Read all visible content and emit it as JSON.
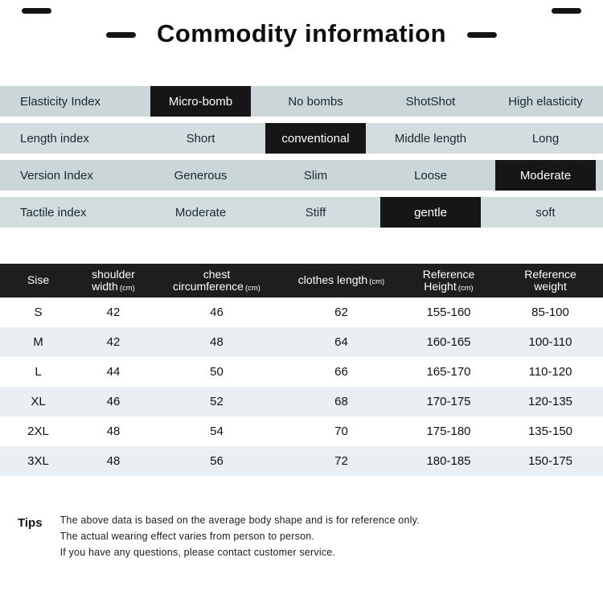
{
  "title": "Commodity information",
  "colors": {
    "selected_bg": "#161616",
    "attr_row_bg": "#cbd6d8",
    "table_header_bg": "#1e1e1e",
    "stripe_bg": "#e9eff2"
  },
  "attributes": {
    "rows": [
      {
        "label": "Elasticity Index",
        "options": [
          "Micro-bomb",
          "No bombs",
          "ShotShot",
          "High elasticity"
        ],
        "selected": "Micro-bomb"
      },
      {
        "label": "Length index",
        "options": [
          "Short",
          "conventional",
          "Middle length",
          "Long"
        ],
        "selected": "conventional"
      },
      {
        "label": "Version Index",
        "options": [
          "Generous",
          "Slim",
          "Loose",
          "Moderate"
        ],
        "selected": "Moderate"
      },
      {
        "label": "Tactile index",
        "options": [
          "Moderate",
          "Stiff",
          "gentle",
          "soft"
        ],
        "selected": "gentle"
      }
    ]
  },
  "size_table": {
    "headers": [
      {
        "line1": "Sise",
        "line2": "",
        "unit": ""
      },
      {
        "line1": "shoulder",
        "line2": "width",
        "unit": "(cm)"
      },
      {
        "line1": "chest",
        "line2": "circumference",
        "unit": "(cm)"
      },
      {
        "line1": "clothes length",
        "line2": "",
        "unit": "(cm)"
      },
      {
        "line1": "Reference",
        "line2": "Height",
        "unit": "(cm)"
      },
      {
        "line1": "Reference",
        "line2": "weight",
        "unit": ""
      }
    ],
    "rows": [
      [
        "S",
        "42",
        "46",
        "62",
        "155-160",
        "85-100"
      ],
      [
        "M",
        "42",
        "48",
        "64",
        "160-165",
        "100-110"
      ],
      [
        "L",
        "44",
        "50",
        "66",
        "165-170",
        "110-120"
      ],
      [
        "XL",
        "46",
        "52",
        "68",
        "170-175",
        "120-135"
      ],
      [
        "2XL",
        "48",
        "54",
        "70",
        "175-180",
        "135-150"
      ],
      [
        "3XL",
        "48",
        "56",
        "72",
        "180-185",
        "150-175"
      ]
    ]
  },
  "tips": {
    "label": "Tips",
    "lines": [
      "The above data is based on the average body shape and is for reference only.",
      "The actual wearing effect varies from person to person.",
      "If you have any questions, please contact customer service."
    ]
  }
}
